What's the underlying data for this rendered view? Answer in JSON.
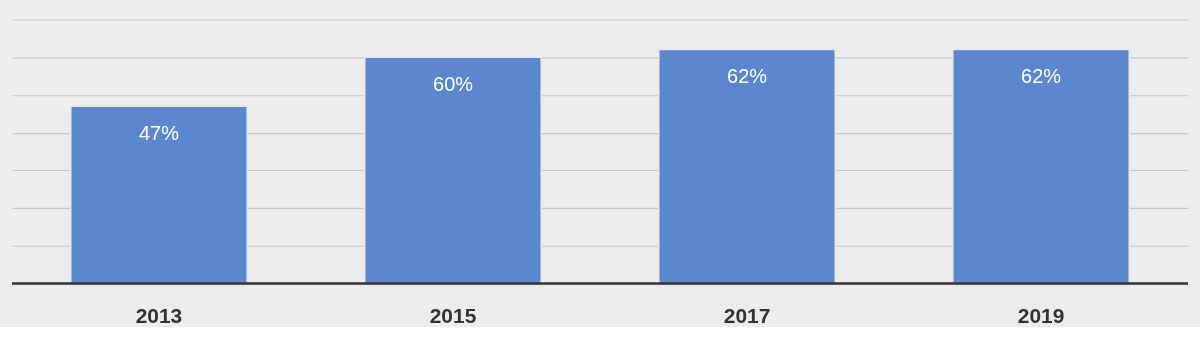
{
  "chart_data": {
    "type": "bar",
    "categories": [
      "2013",
      "2015",
      "2017",
      "2019"
    ],
    "values": [
      47,
      60,
      62,
      62
    ],
    "value_labels": [
      "47%",
      "60%",
      "62%",
      "62%"
    ],
    "color": "#5b87cf",
    "ylim": [
      0,
      75
    ],
    "yticks": [
      {
        "value": 0,
        "label": null
      },
      {
        "value": 10,
        "label": null
      },
      {
        "value": 20,
        "label": null
      },
      {
        "value": 30,
        "label": null
      },
      {
        "value": 40,
        "label": null
      },
      {
        "value": 50,
        "label": null
      },
      {
        "value": 60,
        "label": null
      },
      {
        "value": 70,
        "label": null
      }
    ],
    "grid": "y",
    "tick_labels": "x"
  }
}
